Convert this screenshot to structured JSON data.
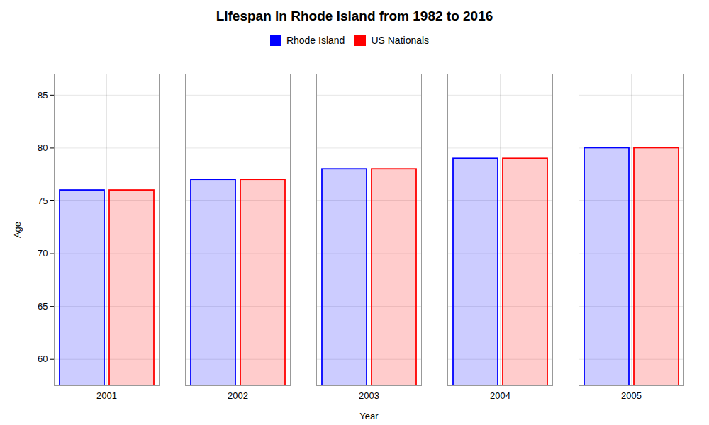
{
  "chart_data": {
    "type": "bar",
    "title": "Lifespan in Rhode Island from 1982 to 2016",
    "xlabel": "Year",
    "ylabel": "Age",
    "categories": [
      "2001",
      "2002",
      "2003",
      "2004",
      "2005"
    ],
    "series": [
      {
        "name": "Rhode Island",
        "color": "#0000ff",
        "values": [
          76,
          77,
          78,
          79,
          80
        ]
      },
      {
        "name": "US Nationals",
        "color": "#ff0000",
        "values": [
          76,
          77,
          78,
          79,
          80
        ]
      }
    ],
    "ylim": [
      57.5,
      87
    ],
    "yticks": [
      60,
      65,
      70,
      75,
      80,
      85
    ],
    "grid": true,
    "legend": "top"
  }
}
